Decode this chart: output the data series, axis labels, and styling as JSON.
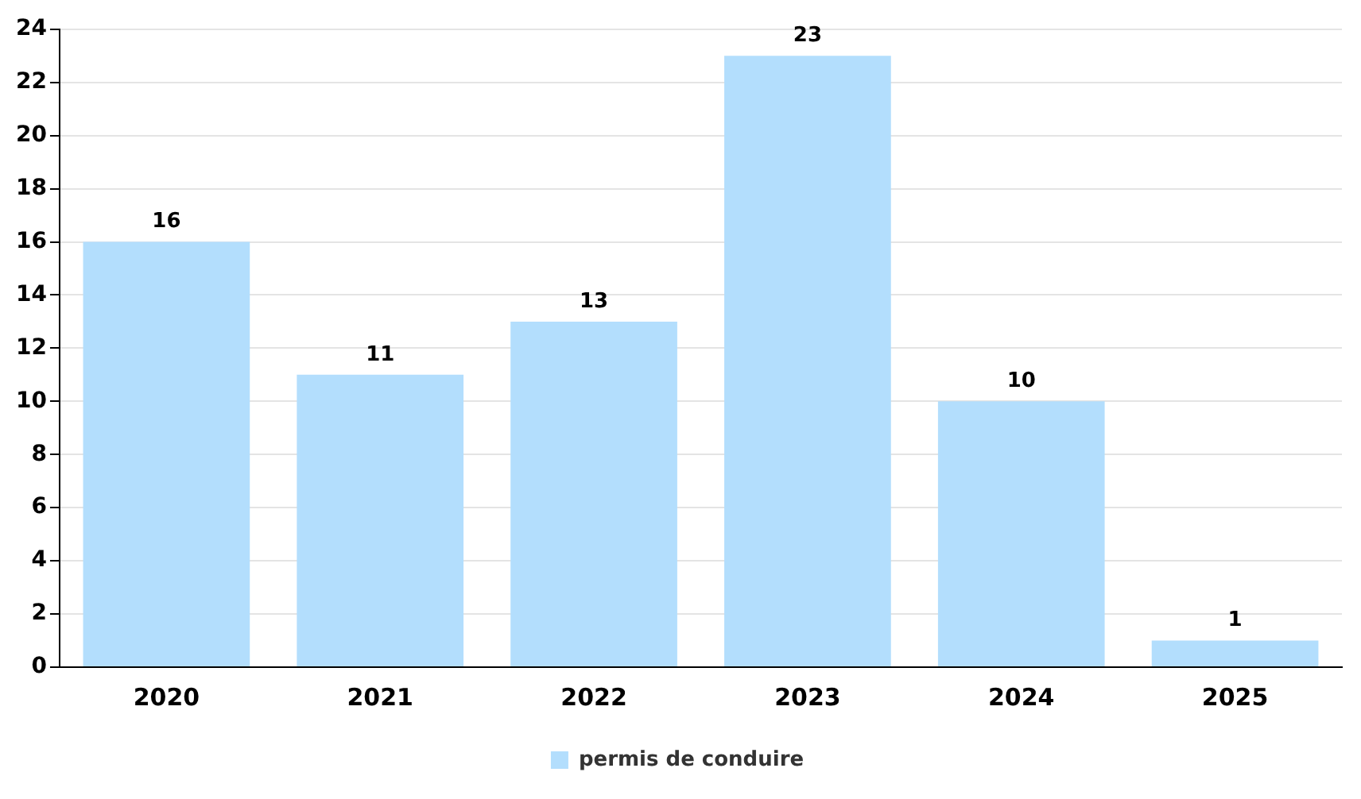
{
  "chart_data": {
    "type": "bar",
    "categories": [
      "2020",
      "2021",
      "2022",
      "2023",
      "2024",
      "2025"
    ],
    "series": [
      {
        "name": "permis de conduire",
        "color": "#b3defd",
        "values": [
          16,
          11,
          13,
          23,
          10,
          1
        ]
      }
    ],
    "ylim": [
      0,
      24
    ],
    "yticks": [
      0,
      2,
      4,
      6,
      8,
      10,
      12,
      14,
      16,
      18,
      20,
      22,
      24
    ],
    "grid": "y",
    "legend": "bottom",
    "data_labels": true
  }
}
